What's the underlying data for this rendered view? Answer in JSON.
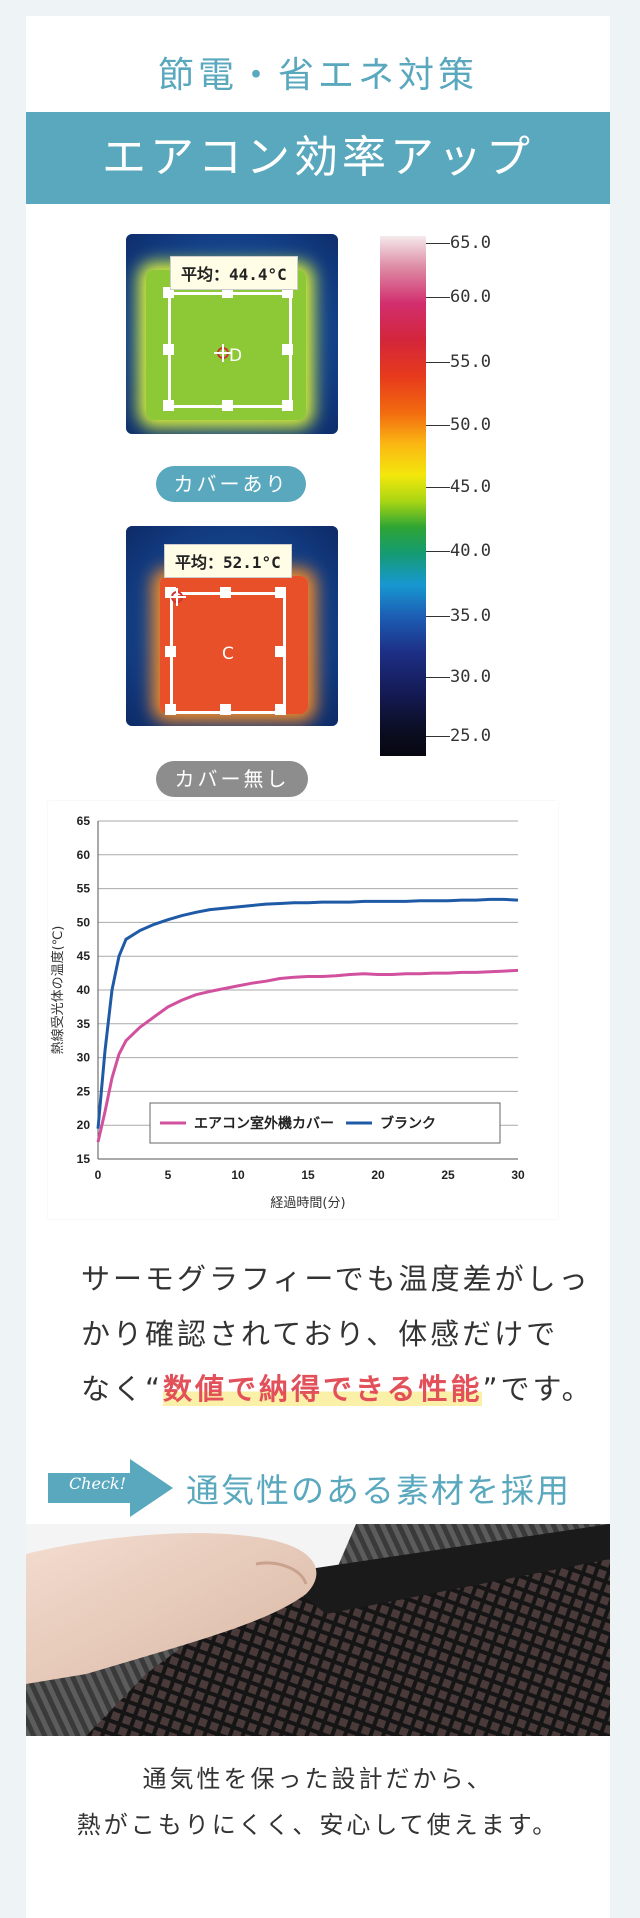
{
  "header": {
    "subtitle": "節電・省エネ対策",
    "title": "エアコン効率アップ"
  },
  "thermography": {
    "with_cover": {
      "average_label": "平均：44.4°C",
      "mark": "D",
      "caption": "カバーあり"
    },
    "without_cover": {
      "average_label": "平均：52.1°C",
      "mark": "C",
      "caption": "カバー無し"
    },
    "scale_labels": [
      "65.0",
      "60.0",
      "55.0",
      "50.0",
      "45.0",
      "40.0",
      "35.0",
      "30.0",
      "25.0"
    ],
    "scale_colors": {
      "hot": "#f5e9ec",
      "mid": "#f3e70c",
      "cold": "#070711"
    }
  },
  "chart_data": {
    "type": "line",
    "ylabel": "熱線受光体の温度(℃)",
    "xlabel": "経過時間(分)",
    "xlim": [
      0,
      30
    ],
    "ylim": [
      15,
      65
    ],
    "x_ticks": [
      "0",
      "5",
      "10",
      "15",
      "20",
      "25",
      "30"
    ],
    "y_ticks": [
      "15",
      "20",
      "25",
      "30",
      "35",
      "40",
      "45",
      "50",
      "55",
      "60",
      "65"
    ],
    "grid": true,
    "legend_position": "bottom",
    "series": [
      {
        "name": "エアコン室外機カバー",
        "color": "#d1519e",
        "x": [
          0,
          0.5,
          1,
          1.5,
          2,
          3,
          4,
          5,
          6,
          7,
          8,
          9,
          10,
          11,
          12,
          13,
          14,
          15,
          16,
          17,
          18,
          19,
          20,
          21,
          22,
          23,
          24,
          25,
          26,
          27,
          28,
          29,
          30
        ],
        "y": [
          17.5,
          22,
          27,
          30.5,
          32.5,
          34.5,
          36,
          37.5,
          38.5,
          39.3,
          39.8,
          40.2,
          40.6,
          41,
          41.3,
          41.7,
          41.9,
          42,
          42,
          42.1,
          42.3,
          42.4,
          42.3,
          42.3,
          42.4,
          42.4,
          42.5,
          42.5,
          42.6,
          42.6,
          42.7,
          42.8,
          42.9
        ]
      },
      {
        "name": "ブランク",
        "color": "#1f5aa6",
        "x": [
          0,
          0.5,
          1,
          1.5,
          2,
          3,
          4,
          5,
          6,
          7,
          8,
          9,
          10,
          11,
          12,
          13,
          14,
          15,
          16,
          17,
          18,
          19,
          20,
          21,
          22,
          23,
          24,
          25,
          26,
          27,
          28,
          29,
          30
        ],
        "y": [
          19.5,
          31,
          40,
          45,
          47.5,
          48.8,
          49.7,
          50.4,
          51,
          51.5,
          51.9,
          52.1,
          52.3,
          52.5,
          52.7,
          52.8,
          52.9,
          52.9,
          53,
          53,
          53,
          53.1,
          53.1,
          53.1,
          53.1,
          53.2,
          53.2,
          53.2,
          53.3,
          53.3,
          53.4,
          53.4,
          53.3
        ]
      }
    ]
  },
  "body": {
    "line1": "サーモグラフィーでも温度差がしっ",
    "line2": "かり確認されており、体感だけで",
    "line3_pre": "なく“",
    "line3_highlight": "数値で納得できる性能",
    "line3_post": "”です。"
  },
  "check": {
    "label": "Check!",
    "title": "通気性のある素材を採用"
  },
  "closing": {
    "line1": "通気性を保った設計だから、",
    "line2": "熱がこもりにくく、安心して使えます。"
  }
}
